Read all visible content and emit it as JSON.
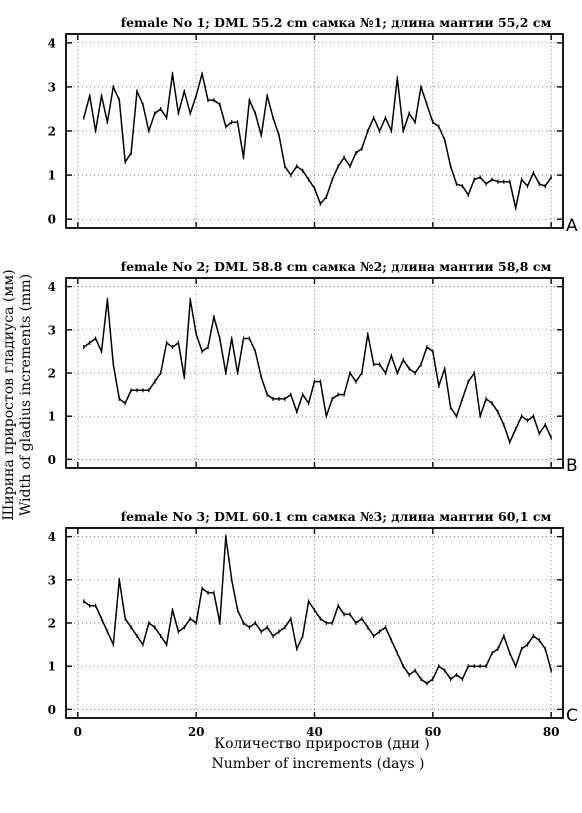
{
  "y_axis_label": "Ширина приростов гладиуса (мм)",
  "y_axis_label_en": "Width of gladius increments (mm)",
  "x_axis_label": "Количество приростов (дни )",
  "x_axis_label_en": "Number of increments (days )",
  "chart_data": [
    {
      "type": "line",
      "title": "female   No 1;   DML 55.2 cm  самка №1; длина мантии 55,2 см",
      "panel_letter": "A",
      "xlim": [
        -2,
        82
      ],
      "ylim": [
        -0.2,
        4.2
      ],
      "yticks": [
        0,
        1,
        2,
        3,
        4
      ],
      "xticks": [
        0,
        20,
        40,
        60,
        80
      ],
      "grid": true,
      "x": [
        1,
        2,
        3,
        4,
        5,
        6,
        7,
        8,
        9,
        10,
        11,
        12,
        13,
        14,
        15,
        16,
        17,
        18,
        19,
        20,
        21,
        22,
        23,
        24,
        25,
        26,
        27,
        28,
        29,
        30,
        31,
        32,
        33,
        34,
        35,
        36,
        37,
        38,
        39,
        40,
        41,
        42,
        43,
        44,
        45,
        46,
        47,
        48,
        49,
        50,
        51,
        52,
        53,
        54,
        55,
        56,
        57,
        58,
        59,
        60,
        61,
        62,
        63,
        64,
        65,
        66,
        67,
        68,
        69,
        70,
        71,
        72,
        73,
        74,
        75,
        76,
        77,
        78,
        79,
        80
      ],
      "y": [
        2.3,
        2.8,
        2.0,
        2.8,
        2.2,
        3.0,
        2.7,
        1.3,
        1.5,
        2.9,
        2.6,
        2.0,
        2.4,
        2.5,
        2.3,
        3.3,
        2.4,
        2.9,
        2.4,
        2.8,
        3.3,
        2.7,
        2.7,
        2.6,
        2.1,
        2.2,
        2.2,
        1.4,
        2.7,
        2.4,
        1.9,
        2.8,
        2.3,
        1.9,
        1.2,
        1.0,
        1.2,
        1.1,
        0.9,
        0.7,
        0.35,
        0.5,
        0.9,
        1.2,
        1.4,
        1.2,
        1.5,
        1.6,
        2.0,
        2.3,
        2.0,
        2.3,
        2.0,
        3.2,
        2.0,
        2.4,
        2.2,
        3.0,
        2.6,
        2.2,
        2.1,
        1.8,
        1.2,
        0.8,
        0.75,
        0.55,
        0.9,
        0.95,
        0.8,
        0.9,
        0.85,
        0.85,
        0.85,
        0.25,
        0.9,
        0.75,
        1.05,
        0.8,
        0.75,
        0.95
      ]
    },
    {
      "type": "line",
      "title": "female   No 2;   DML  58.8 cm  самка №2; длина мантии 58,8 см",
      "panel_letter": "B",
      "xlim": [
        -2,
        82
      ],
      "ylim": [
        -0.2,
        4.2
      ],
      "yticks": [
        0,
        1,
        2,
        3,
        4
      ],
      "xticks": [
        0,
        20,
        40,
        60,
        80
      ],
      "grid": true,
      "x": [
        1,
        2,
        3,
        4,
        5,
        6,
        7,
        8,
        9,
        10,
        11,
        12,
        13,
        14,
        15,
        16,
        17,
        18,
        19,
        20,
        21,
        22,
        23,
        24,
        25,
        26,
        27,
        28,
        29,
        30,
        31,
        32,
        33,
        34,
        35,
        36,
        37,
        38,
        39,
        40,
        41,
        42,
        43,
        44,
        45,
        46,
        47,
        48,
        49,
        50,
        51,
        52,
        53,
        54,
        55,
        56,
        57,
        58,
        59,
        60,
        61,
        62,
        63,
        64,
        65,
        66,
        67,
        68,
        69,
        70,
        71,
        72,
        73,
        74,
        75,
        76,
        77,
        78,
        79,
        80
      ],
      "y": [
        2.6,
        2.7,
        2.8,
        2.5,
        3.7,
        2.2,
        1.4,
        1.3,
        1.6,
        1.6,
        1.6,
        1.6,
        1.8,
        2.0,
        2.7,
        2.6,
        2.7,
        1.9,
        3.7,
        2.9,
        2.5,
        2.6,
        3.3,
        2.8,
        2.0,
        2.8,
        2.0,
        2.8,
        2.8,
        2.5,
        1.9,
        1.5,
        1.4,
        1.4,
        1.4,
        1.5,
        1.1,
        1.5,
        1.3,
        1.8,
        1.8,
        1.0,
        1.4,
        1.5,
        1.5,
        2.0,
        1.8,
        2.0,
        2.9,
        2.2,
        2.2,
        2.0,
        2.4,
        2.0,
        2.3,
        2.1,
        2.0,
        2.2,
        2.6,
        2.5,
        1.7,
        2.1,
        1.2,
        1.0,
        1.4,
        1.8,
        2.0,
        1.0,
        1.4,
        1.3,
        1.1,
        0.8,
        0.4,
        0.7,
        1.0,
        0.9,
        1.0,
        0.6,
        0.8,
        0.5
      ]
    },
    {
      "type": "line",
      "title": "female   No 3;   DML 60.1 cm  самка №3; длина мантии 60,1 см",
      "panel_letter": "C",
      "xlim": [
        -2,
        82
      ],
      "ylim": [
        -0.2,
        4.2
      ],
      "yticks": [
        0,
        1,
        2,
        3,
        4
      ],
      "xticks": [
        0,
        20,
        40,
        60,
        80
      ],
      "xtick_labels": [
        "0",
        "20",
        "40",
        "60",
        "80"
      ],
      "grid": true,
      "x": [
        1,
        2,
        3,
        4,
        5,
        6,
        7,
        8,
        9,
        10,
        11,
        12,
        13,
        14,
        15,
        16,
        17,
        18,
        19,
        20,
        21,
        22,
        23,
        24,
        25,
        26,
        27,
        28,
        29,
        30,
        31,
        32,
        33,
        34,
        35,
        36,
        37,
        38,
        39,
        40,
        41,
        42,
        43,
        44,
        45,
        46,
        47,
        48,
        49,
        50,
        51,
        52,
        53,
        54,
        55,
        56,
        57,
        58,
        59,
        60,
        61,
        62,
        63,
        64,
        65,
        66,
        67,
        68,
        69,
        70,
        71,
        72,
        73,
        74,
        75,
        76,
        77,
        78,
        79,
        80
      ],
      "y": [
        2.5,
        2.4,
        2.4,
        2.1,
        1.8,
        1.5,
        3.0,
        2.1,
        1.9,
        1.7,
        1.5,
        2.0,
        1.9,
        1.7,
        1.5,
        2.3,
        1.8,
        1.9,
        2.1,
        2.0,
        2.8,
        2.7,
        2.7,
        2.0,
        4.0,
        3.0,
        2.3,
        2.0,
        1.9,
        2.0,
        1.8,
        1.9,
        1.7,
        1.8,
        1.9,
        2.1,
        1.4,
        1.7,
        2.5,
        2.3,
        2.1,
        2.0,
        2.0,
        2.4,
        2.2,
        2.2,
        2.0,
        2.1,
        1.9,
        1.7,
        1.8,
        1.9,
        1.6,
        1.3,
        1.0,
        0.8,
        0.9,
        0.7,
        0.6,
        0.7,
        1.0,
        0.9,
        0.7,
        0.8,
        0.7,
        1.0,
        1.0,
        1.0,
        1.0,
        1.3,
        1.4,
        1.7,
        1.3,
        1.0,
        1.4,
        1.5,
        1.7,
        1.6,
        1.4,
        0.9
      ]
    }
  ]
}
